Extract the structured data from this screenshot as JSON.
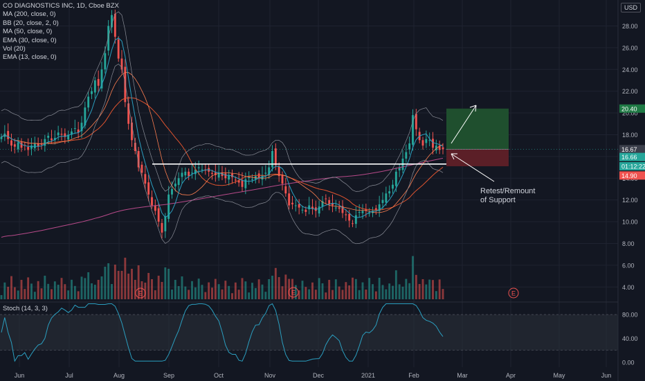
{
  "header": {
    "title": "CO DIAGNOSTICS INC, 1D, Cboe BZX",
    "indicators": [
      "MA (200, close, 0)",
      "BB (20, close, 2, 0)",
      "MA (50, close, 0)",
      "EMA (30, close, 0)",
      "Vol (20)",
      "EMA (13, close, 0)"
    ],
    "currency": "USD"
  },
  "stoch_label": "Stoch (14, 3, 3)",
  "annotation": {
    "line1": "Retest/Remount",
    "line2": "of Support"
  },
  "earnings_marker": "E",
  "colors": {
    "bg": "#131722",
    "up": "#26a69a",
    "down": "#ef5350",
    "grid": "#1f2330",
    "ma200": "#b84a8a",
    "ma50": "#e0542f",
    "ema30": "#ff7f50",
    "ema13": "#2b9fc0",
    "bb": "#8c8f99",
    "stoch": "#2b9fc0",
    "target": "#1f4f2e",
    "stop": "#5b1f27"
  },
  "chart_data": {
    "type": "candlestick",
    "title": "CO DIAGNOSTICS INC, 1D, Cboe BZX",
    "x_ticks": [
      "Jun",
      "Jul",
      "Aug",
      "Sep",
      "Oct",
      "Nov",
      "Dec",
      "2021",
      "Feb",
      "Mar",
      "Apr",
      "May",
      "Jun"
    ],
    "y_ticks": [
      "28.00",
      "26.00",
      "24.00",
      "22.00",
      "20.00",
      "18.00",
      "16.00",
      "14.00",
      "12.00",
      "10.00",
      "8.00",
      "6.00",
      "4.00"
    ],
    "stoch_ticks": [
      "80.00",
      "40.00",
      "0.00"
    ],
    "price_labels": [
      {
        "label": "20.40",
        "value": 20.4,
        "color": "#1f7a45"
      },
      {
        "label": "16.67",
        "value": 16.67,
        "color": "#3b3f4b"
      },
      {
        "label": "16.66",
        "value": 15.95,
        "color": "#26a69a"
      },
      {
        "label": "01:12:22",
        "value": 15.1,
        "color": "#26a69a"
      },
      {
        "label": "14.90",
        "value": 14.25,
        "color": "#ef5350"
      }
    ],
    "support_level": 15.3,
    "position": {
      "entry": 16.67,
      "target": 20.4,
      "stop": 15.1
    },
    "closes": [
      17.8,
      18.1,
      17.6,
      17.0,
      16.9,
      17.3,
      16.8,
      17.0,
      16.6,
      17.0,
      17.2,
      16.9,
      17.1,
      17.6,
      17.9,
      17.5,
      17.7,
      18.2,
      18.0,
      17.8,
      18.0,
      18.3,
      18.6,
      18.2,
      19.1,
      20.5,
      21.5,
      22.0,
      23.0,
      22.5,
      24.0,
      25.5,
      28.0,
      29.0,
      27.0,
      25.0,
      24.0,
      21.0,
      19.0,
      17.5,
      16.5,
      15.0,
      14.5,
      13.5,
      12.5,
      11.5,
      11.0,
      10.0,
      9.0,
      10.5,
      12.5,
      13.0,
      13.5,
      14.0,
      14.5,
      14.6,
      14.2,
      14.5,
      14.8,
      15.0,
      14.8,
      14.7,
      14.6,
      14.4,
      14.3,
      14.5,
      14.2,
      14.0,
      14.3,
      14.1,
      13.8,
      13.6,
      13.2,
      13.9,
      14.1,
      13.9,
      14.2,
      14.0,
      14.3,
      14.5,
      15.0,
      16.5,
      15.2,
      14.2,
      13.5,
      12.6,
      11.5,
      11.6,
      11.5,
      11.3,
      11.1,
      10.9,
      11.5,
      11.2,
      11.0,
      11.4,
      11.9,
      12.1,
      11.6,
      11.5,
      11.3,
      11.2,
      10.8,
      10.6,
      10.1,
      9.8,
      10.6,
      10.9,
      11.0,
      11.0,
      10.8,
      11.0,
      11.1,
      11.6,
      12.0,
      12.6,
      12.8,
      13.4,
      14.6,
      15.0,
      15.8,
      16.4,
      17.2,
      19.8,
      18.5,
      17.5,
      17.0,
      17.6,
      17.5,
      16.8,
      17.0,
      16.6,
      16.66
    ],
    "volume_note": "Vol (20)"
  }
}
